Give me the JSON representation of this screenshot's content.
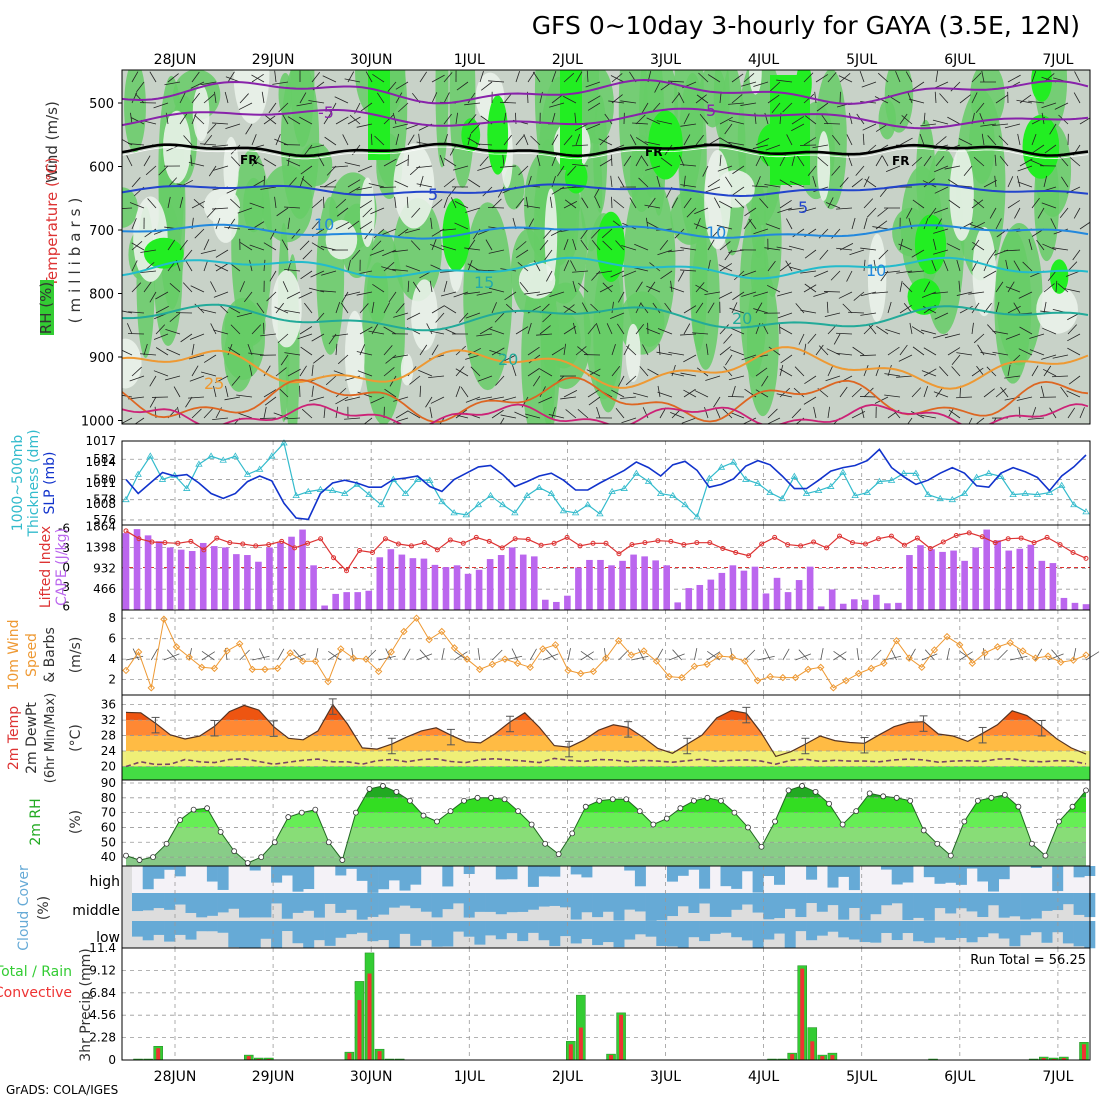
{
  "title": "GFS 0~10day 3-hourly for GAYA (3.5E, 12N)",
  "footer": "GrADS: COLA/IGES",
  "colors": {
    "rh_green": "#33cc33",
    "rh_light": "#99dd99",
    "rh_grey": "#c8d2c8",
    "thickness": "#33bbcc",
    "slp": "#1133cc",
    "lifted": "#dd3333",
    "cape": "#bb66ee",
    "wind10m": "#ee9933",
    "rh2m": "#22aa22",
    "cloud": "#66aad6",
    "rain": "#33cc33",
    "convective": "#ee3333"
  },
  "date_labels": [
    "28JUN",
    "29JUN",
    "30JUN",
    "1JUL",
    "2JUL",
    "3JUL",
    "4JUL",
    "5JUL",
    "6JUL",
    "7JUL"
  ],
  "panels": {
    "upper": {
      "ylabel_wind": "Wind (m/s)",
      "ylabel_temp": "Temperature (°C)",
      "ylabel_rh": "RH (%)",
      "ylabel_mb": "(millibars)",
      "levels": [
        "500",
        "600",
        "700",
        "800",
        "900",
        "1000"
      ],
      "contour_labels": [
        "-5",
        "FR",
        "FR",
        "FR",
        "5",
        "5",
        "5",
        "10",
        "10",
        "10",
        "15",
        "20",
        "20",
        "25"
      ]
    },
    "slp": {
      "ylabel1": "1000~500mb",
      "ylabel2": "Thickness (dm)",
      "ylabel3": "SLP (mb)",
      "left_ticks": [
        "582",
        "580",
        "578",
        "576"
      ],
      "right_ticks": [
        "1017",
        "1014",
        "1011",
        "1008"
      ]
    },
    "cape": {
      "ylabel1": "Lifted Index",
      "ylabel2": "CAPE (J/kg)",
      "left_ticks": [
        "-6",
        "-3",
        "0",
        "3",
        "6"
      ],
      "right_ticks": [
        "1864",
        "1398",
        "932",
        "466"
      ]
    },
    "wind": {
      "ylabel1": "10m Wind",
      "ylabel2": "Speed",
      "ylabel3": "& Barbs",
      "units": "(m/s)",
      "ticks": [
        "8",
        "6",
        "4",
        "2"
      ]
    },
    "temp": {
      "ylabel1": "2m Temp",
      "ylabel2": "2m DewPt",
      "ylabel3": "(6hr Min/Max)",
      "units": "(°C)",
      "ticks": [
        "36",
        "32",
        "28",
        "24",
        "20"
      ]
    },
    "rh2m": {
      "ylabel": "2m RH",
      "units": "(%)",
      "ticks": [
        "90",
        "80",
        "70",
        "60",
        "50",
        "40"
      ]
    },
    "cloud": {
      "ylabel1": "Cloud Cover",
      "units": "(%)",
      "levels": [
        "high",
        "middle",
        "low"
      ]
    },
    "precip": {
      "ylabel1": "Total / Rain",
      "ylabel2": "Convective",
      "ylabel3": "3hr Precip (mm)",
      "ticks": [
        "11.4",
        "9.12",
        "6.84",
        "4.56",
        "2.28",
        "0"
      ],
      "run_total": "Run Total = 56.25"
    }
  },
  "chart_data": [
    {
      "type": "line",
      "panel": "1000~500mb thickness / SLP",
      "series": [
        {
          "name": "1000~500mb Thickness (dm)",
          "values": [
            578.0,
            580.5,
            582.3,
            580.0,
            580.4,
            579.1,
            581.5,
            582.3,
            581.9,
            582.3,
            580.5,
            581.0,
            582.3,
            583.6,
            578.4,
            578.8,
            579.0,
            578.9,
            578.6,
            579.5,
            578.5,
            577.5,
            580.0,
            578.6,
            580.0,
            579.9,
            577.8,
            576.7,
            576.5,
            577.5,
            578.4,
            577.5,
            576.7,
            578.4,
            579.2,
            578.6,
            576.9,
            576.7,
            577.5,
            576.6,
            578.8,
            579.1,
            580.6,
            579.8,
            578.6,
            578.4,
            577.5,
            576.3,
            580.1,
            581.2,
            581.7,
            580.0,
            579.6,
            578.7,
            578.1,
            580.3,
            578.6,
            578.9,
            579.3,
            580.7,
            578.4,
            578.7,
            579.8,
            579.9,
            580.6,
            580.6,
            578.5,
            578.1,
            578.0,
            578.6,
            580.2,
            580.6,
            580.3,
            578.5,
            578.6,
            578.5,
            578.7,
            579.4,
            577.5,
            576.8
          ]
        },
        {
          "name": "SLP (mb)",
          "values": [
            1011.5,
            1009.5,
            1011.0,
            1012.5,
            1012.0,
            1012.2,
            1011.0,
            1009.5,
            1008.8,
            1009.5,
            1011.2,
            1012.0,
            1011.3,
            1008.1,
            1006.0,
            1005.8,
            1009.5,
            1011.0,
            1011.4,
            1011.0,
            1010.4,
            1010.4,
            1011.5,
            1011.7,
            1012.0,
            1010.5,
            1009.8,
            1011.5,
            1012.4,
            1013.3,
            1013.5,
            1012.2,
            1010.5,
            1011.2,
            1012.0,
            1012.4,
            1011.4,
            1010.0,
            1010.0,
            1011.0,
            1011.9,
            1012.8,
            1014.0,
            1013.2,
            1012.0,
            1013.6,
            1014.1,
            1012.8,
            1010.4,
            1010.8,
            1011.6,
            1013.4,
            1014.2,
            1013.6,
            1012.0,
            1010.2,
            1010.2,
            1011.4,
            1012.7,
            1013.2,
            1013.5,
            1014.2,
            1015.8,
            1013.2,
            1011.9,
            1010.8,
            1011.4,
            1012.4,
            1013.2,
            1012.4,
            1010.6,
            1010.4,
            1012.4,
            1013.2,
            1012.6,
            1011.8,
            1009.9,
            1012.0,
            1013.3,
            1015.0
          ]
        }
      ]
    },
    {
      "type": "bar",
      "panel": "Lifted Index / CAPE",
      "series": [
        {
          "name": "CAPE (J/kg)",
          "values": [
            1720,
            1810,
            1670,
            1540,
            1400,
            1350,
            1320,
            1500,
            1430,
            1400,
            1250,
            1230,
            1080,
            1400,
            1500,
            1640,
            1800,
            1000,
            100,
            360,
            400,
            400,
            430,
            1180,
            1360,
            1240,
            1160,
            1150,
            1010,
            960,
            1000,
            810,
            900,
            1140,
            1230,
            1400,
            1240,
            1200,
            230,
            180,
            320,
            950,
            1120,
            1120,
            1000,
            1100,
            1240,
            1200,
            1110,
            1000,
            170,
            490,
            560,
            680,
            830,
            1000,
            880,
            970,
            370,
            720,
            400,
            670,
            970,
            80,
            460,
            140,
            240,
            230,
            340,
            150,
            160,
            1230,
            1450,
            1360,
            1300,
            1330,
            1100,
            1400,
            1800,
            1560,
            1330,
            1370,
            1460,
            1100,
            1050,
            270,
            160,
            130
          ]
        },
        {
          "name": "Lifted Index",
          "values": [
            -5.6,
            -4.4,
            -3.9,
            -3.8,
            -3.7,
            -4.0,
            -2.7,
            -4.5,
            -3.8,
            -3.6,
            -3.3,
            -3.5,
            -4.0,
            -3.0,
            -3.7,
            -4.4,
            -1.5,
            0.5,
            -2.6,
            -2.3,
            -4.4,
            -3.6,
            -3.3,
            -3.8,
            -2.7,
            -4.2,
            -3.7,
            -4.6,
            -4.0,
            -3.0,
            -4.4,
            -4.3,
            -3.4,
            -3.7,
            -4.6,
            -3.3,
            -3.7,
            -3.7,
            -2.1,
            -3.5,
            -3.8,
            -4.1,
            -4.0,
            -3.5,
            -3.8,
            -3.8,
            -2.9,
            -2.3,
            -1.8,
            -3.6,
            -4.6,
            -3.5,
            -3.3,
            -3.9,
            -3.0,
            -4.8,
            -3.8,
            -3.6,
            -4.4,
            -4.8,
            -3.4,
            -4.5,
            -2.9,
            -3.9,
            -4.9,
            -5.3,
            -4.7,
            -3.8,
            -4.4,
            -4.5,
            -3.8,
            -4.6,
            -3.5,
            -2.3,
            -1.4
          ]
        }
      ]
    },
    {
      "type": "line",
      "panel": "10m Wind Speed & Barbs",
      "series": [
        {
          "name": "10m Wind Speed (m/s)",
          "values": [
            2.9,
            4.7,
            1.2,
            7.9,
            5.2,
            4.2,
            3.2,
            3.1,
            4.8,
            5.5,
            3.0,
            3.0,
            3.1,
            4.6,
            3.8,
            3.8,
            1.8,
            5.0,
            4.1,
            4.0,
            2.8,
            4.7,
            6.7,
            8.0,
            5.9,
            6.7,
            5.1,
            4.0,
            3.0,
            3.5,
            4.0,
            3.6,
            3.2,
            5.0,
            5.4,
            2.9,
            2.6,
            2.8,
            4.1,
            5.8,
            4.4,
            4.8,
            3.8,
            2.3,
            2.2,
            3.3,
            3.5,
            4.3,
            4.2,
            3.8,
            1.9,
            2.3,
            2.2,
            2.2,
            3.0,
            3.2,
            1.2,
            1.9,
            2.6,
            3.1,
            3.6,
            5.8,
            4.1,
            3.2,
            4.9,
            6.2,
            5.4,
            3.6,
            4.6,
            5.2,
            5.6,
            4.8,
            4.1,
            4.3,
            3.7,
            3.9,
            4.4
          ]
        }
      ]
    },
    {
      "type": "area",
      "panel": "2m Temp / 2m DewPt",
      "series": [
        {
          "name": "2m Temp (°C)",
          "values": [
            34.0,
            33.9,
            31.2,
            28.2,
            27.1,
            27.9,
            30.4,
            34.2,
            35.8,
            34.6,
            30.3,
            27.3,
            26.9,
            29.2,
            36.0,
            31.0,
            24.8,
            24.5,
            25.8,
            27.6,
            29.2,
            30.0,
            28.1,
            26.4,
            26.1,
            28.5,
            31.5,
            33.9,
            30.1,
            25.4,
            25.0,
            26.8,
            29.4,
            30.8,
            30.1,
            27.6,
            24.7,
            23.4,
            25.8,
            28.1,
            32.6,
            34.5,
            33.8,
            28.8,
            22.6,
            23.8,
            25.8,
            27.9,
            26.7,
            26.2,
            26.0,
            28.2,
            30.3,
            31.4,
            31.6,
            28.4,
            27.9,
            26.5,
            28.6,
            30.8,
            34.4,
            33.2,
            30.4,
            27.2,
            24.8,
            23.2
          ]
        },
        {
          "name": "2m DewPt (°C)",
          "values": [
            20.0,
            21.2,
            20.5,
            20.6,
            21.8,
            21.2,
            21.0,
            21.8,
            22.0,
            21.3,
            20.6,
            21.1,
            21.6,
            21.9,
            21.2,
            21.2,
            20.6,
            21.5,
            21.8,
            21.2,
            21.8,
            22.0,
            21.3,
            21.0,
            21.8,
            22.0,
            21.7,
            21.4,
            21.0,
            22.1,
            21.6,
            21.3,
            21.8,
            21.7,
            21.2,
            21.6,
            21.4,
            21.1,
            21.5,
            21.9,
            21.3,
            21.6,
            21.7,
            21.4,
            20.6,
            21.6,
            21.9,
            21.3,
            21.6,
            21.4,
            21.4,
            21.2,
            21.7,
            21.9,
            21.7,
            21.1,
            21.4,
            21.5,
            21.3,
            21.9,
            22.0,
            21.4,
            21.2,
            21.5,
            21.4,
            20.7
          ]
        }
      ]
    },
    {
      "type": "area",
      "panel": "2m RH",
      "series": [
        {
          "name": "2m RH (%)",
          "values": [
            41,
            38,
            40,
            49,
            65,
            72,
            73,
            57,
            44,
            36,
            40,
            50,
            67,
            70,
            72,
            50,
            38,
            70,
            86,
            88,
            84,
            78,
            68,
            64,
            71,
            78,
            80,
            80,
            79,
            71,
            62,
            49,
            42,
            56,
            74,
            78,
            79,
            79,
            71,
            62,
            66,
            73,
            78,
            80,
            78,
            70,
            60,
            47,
            64,
            85,
            88,
            84,
            76,
            62,
            71,
            83,
            81,
            80,
            78,
            58,
            49,
            41,
            64,
            78,
            80,
            82,
            74,
            49,
            41,
            64,
            74,
            85
          ]
        }
      ]
    },
    {
      "type": "bar",
      "panel": "3hr Precip",
      "series": [
        {
          "name": "Total (mm)",
          "values": [
            0,
            0.1,
            0.1,
            1.4,
            0,
            0,
            0,
            0,
            0,
            0,
            0,
            0,
            0.5,
            0.2,
            0.2,
            0,
            0,
            0,
            0,
            0,
            0,
            0,
            0.8,
            8.0,
            10.9,
            1.1,
            0.1,
            0.1,
            0,
            0,
            0,
            0,
            0,
            0,
            0,
            0,
            0,
            0,
            0,
            0,
            0,
            0,
            0,
            0,
            1.9,
            6.6,
            0,
            0,
            0.6,
            4.8,
            0,
            0,
            0,
            0,
            0,
            0,
            0,
            0,
            0,
            0,
            0,
            0,
            0,
            0,
            0.1,
            0.1,
            0.7,
            9.6,
            3.3,
            0.5,
            0.7,
            0,
            0,
            0,
            0,
            0,
            0,
            0,
            0,
            0,
            0.1,
            0,
            0,
            0,
            0,
            0,
            0,
            0,
            0,
            0,
            0.1,
            0.3,
            0.2,
            0.3,
            0,
            1.8
          ]
        },
        {
          "name": "Convective (mm)",
          "values": [
            0,
            0,
            0,
            1.2,
            0,
            0,
            0,
            0,
            0,
            0,
            0,
            0,
            0.4,
            0.1,
            0.1,
            0,
            0,
            0,
            0,
            0,
            0,
            0,
            0.7,
            6.1,
            8.8,
            0.9,
            0,
            0,
            0,
            0,
            0,
            0,
            0,
            0,
            0,
            0,
            0,
            0,
            0,
            0,
            0,
            0,
            0,
            0,
            1.6,
            3.3,
            0,
            0,
            0.5,
            4.6,
            0,
            0,
            0,
            0,
            0,
            0,
            0,
            0,
            0,
            0,
            0,
            0,
            0,
            0,
            0,
            0,
            0.6,
            9.3,
            1.9,
            0.4,
            0.5,
            0,
            0,
            0,
            0,
            0,
            0,
            0,
            0,
            0,
            0,
            0,
            0,
            0,
            0,
            0,
            0,
            0,
            0,
            0,
            0,
            0.2,
            0.1,
            0.2,
            0,
            1.6
          ]
        }
      ]
    }
  ]
}
